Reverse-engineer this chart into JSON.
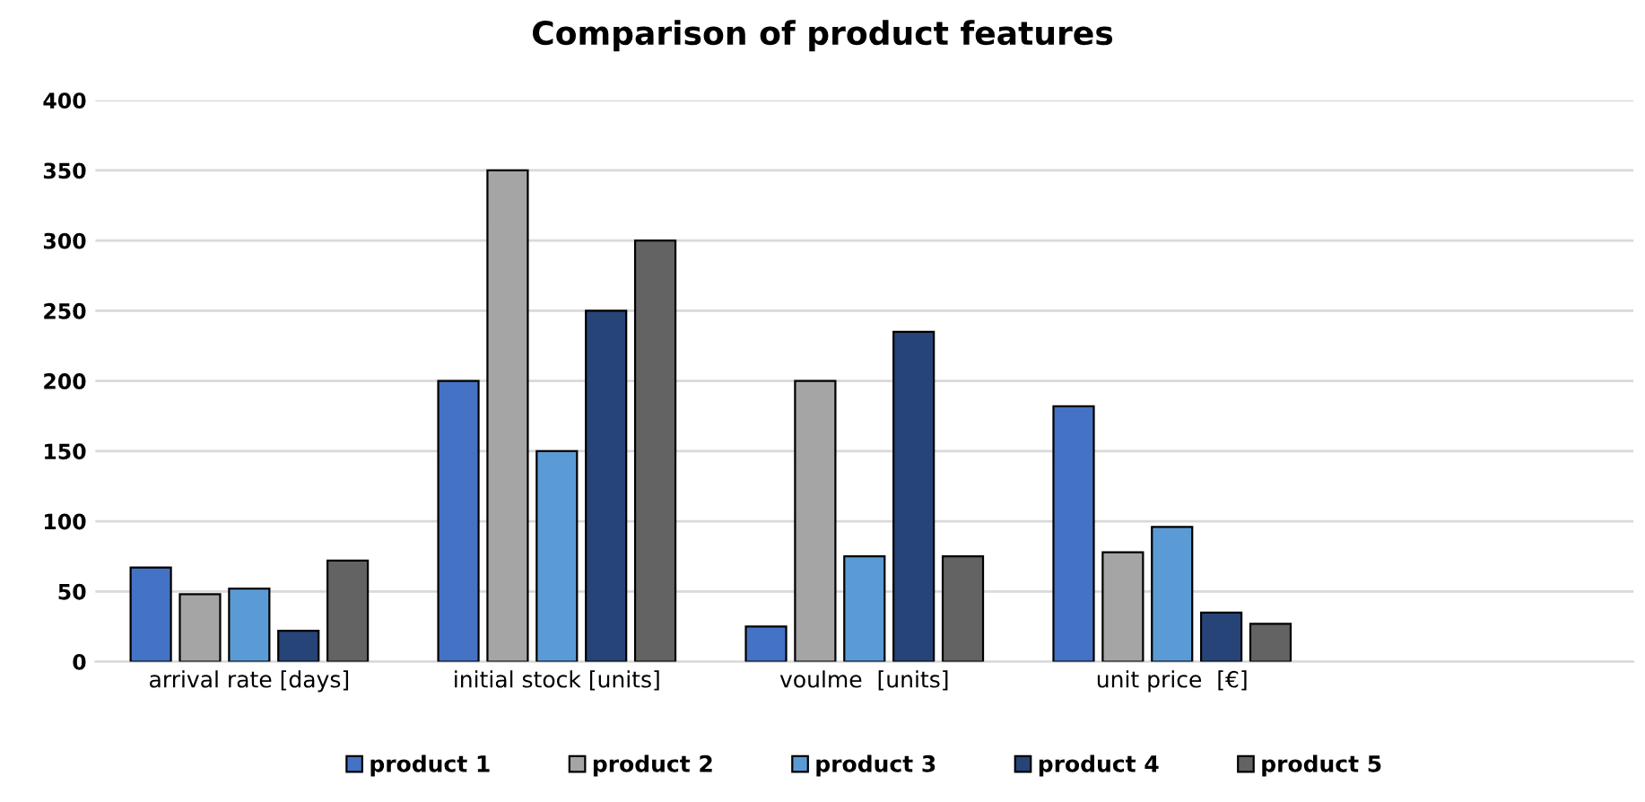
{
  "chart_data": {
    "type": "bar",
    "title": "Comparison of product features",
    "categories": [
      "arrival rate [days]",
      "initial stock [units]",
      "voulme  [units]",
      "unit price  [€]",
      null
    ],
    "series": [
      {
        "name": "product 1",
        "color": "#4472c4",
        "values": [
          67,
          200,
          25,
          182,
          null
        ]
      },
      {
        "name": "product 2",
        "color": "#a5a5a5",
        "values": [
          48,
          350,
          200,
          78,
          null
        ]
      },
      {
        "name": "product 3",
        "color": "#5b9bd5",
        "values": [
          52,
          150,
          75,
          96,
          null
        ]
      },
      {
        "name": "product 4",
        "color": "#264478",
        "values": [
          22,
          250,
          235,
          35,
          null
        ]
      },
      {
        "name": "product 5",
        "color": "#636363",
        "values": [
          72,
          300,
          75,
          27,
          null
        ]
      }
    ],
    "ylim": [
      0,
      400
    ],
    "yticks": [
      0,
      50,
      100,
      150,
      200,
      250,
      300,
      350,
      400
    ],
    "grid": "y",
    "legend": "bottom"
  }
}
